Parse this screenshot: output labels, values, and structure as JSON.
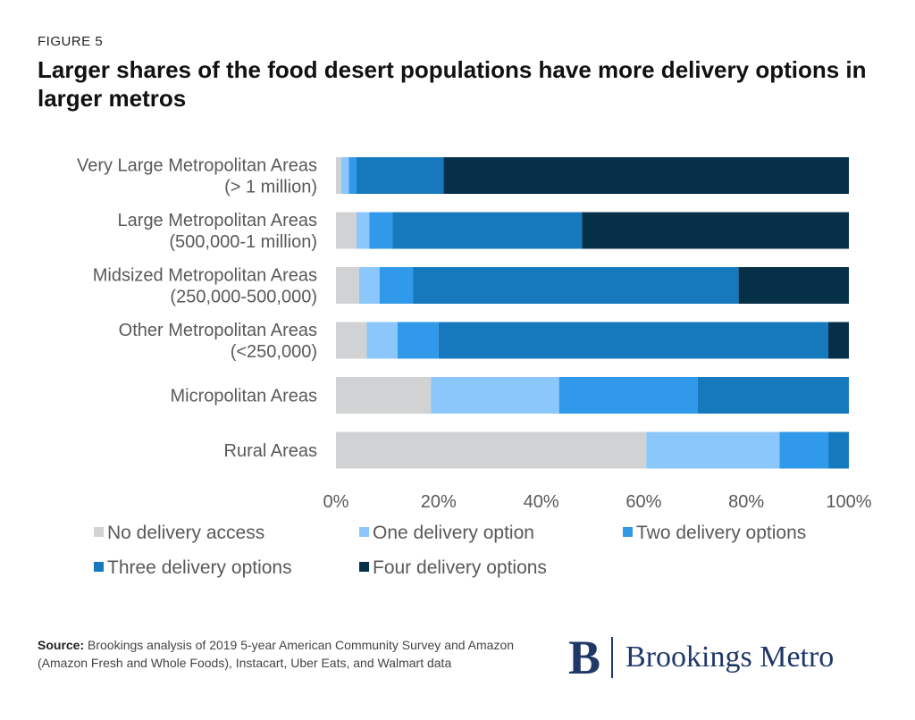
{
  "figure_label": "FIGURE 5",
  "title": "Larger shares of the food desert populations have more delivery options in larger metros",
  "source_label": "Source:",
  "source_text": " Brookings analysis of 2019 5-year American Community Survey and Amazon (Amazon Fresh and Whole Foods), Instacart, Uber Eats, and Walmart data",
  "logo": {
    "mark": "B",
    "text": "Brookings Metro"
  },
  "chart_data": {
    "type": "bar",
    "orientation": "horizontal",
    "stacked": true,
    "categories": [
      [
        "Very Large Metropolitan Areas",
        "(> 1 million)"
      ],
      [
        "Large Metropolitan Areas",
        "(500,000-1 million)"
      ],
      [
        "Midsized Metropolitan Areas",
        "(250,000-500,000)"
      ],
      [
        "Other Metropolitan Areas",
        "(<250,000)"
      ],
      [
        "Micropolitan Areas"
      ],
      [
        "Rural Areas"
      ]
    ],
    "series": [
      {
        "name": "No delivery access",
        "color": "#d0d2d3",
        "values": [
          1.0,
          4.0,
          4.5,
          6.0,
          18.5,
          60.5
        ]
      },
      {
        "name": "One delivery option",
        "color": "#8cc7fb",
        "values": [
          1.5,
          2.5,
          4.0,
          6.0,
          25.0,
          26.0
        ]
      },
      {
        "name": "Two delivery options",
        "color": "#3199ea",
        "values": [
          1.5,
          4.5,
          6.5,
          8.0,
          27.0,
          9.5
        ]
      },
      {
        "name": "Three delivery options",
        "color": "#1679be",
        "values": [
          17.0,
          37.0,
          63.5,
          76.0,
          29.5,
          4.0
        ]
      },
      {
        "name": "Four delivery options",
        "color": "#062f48",
        "values": [
          79.0,
          52.0,
          21.5,
          4.0,
          0.0,
          0.0
        ]
      }
    ],
    "xlim": [
      0,
      100
    ],
    "xticks": [
      "0%",
      "20%",
      "40%",
      "60%",
      "80%",
      "100%"
    ],
    "legend_position": "bottom"
  }
}
